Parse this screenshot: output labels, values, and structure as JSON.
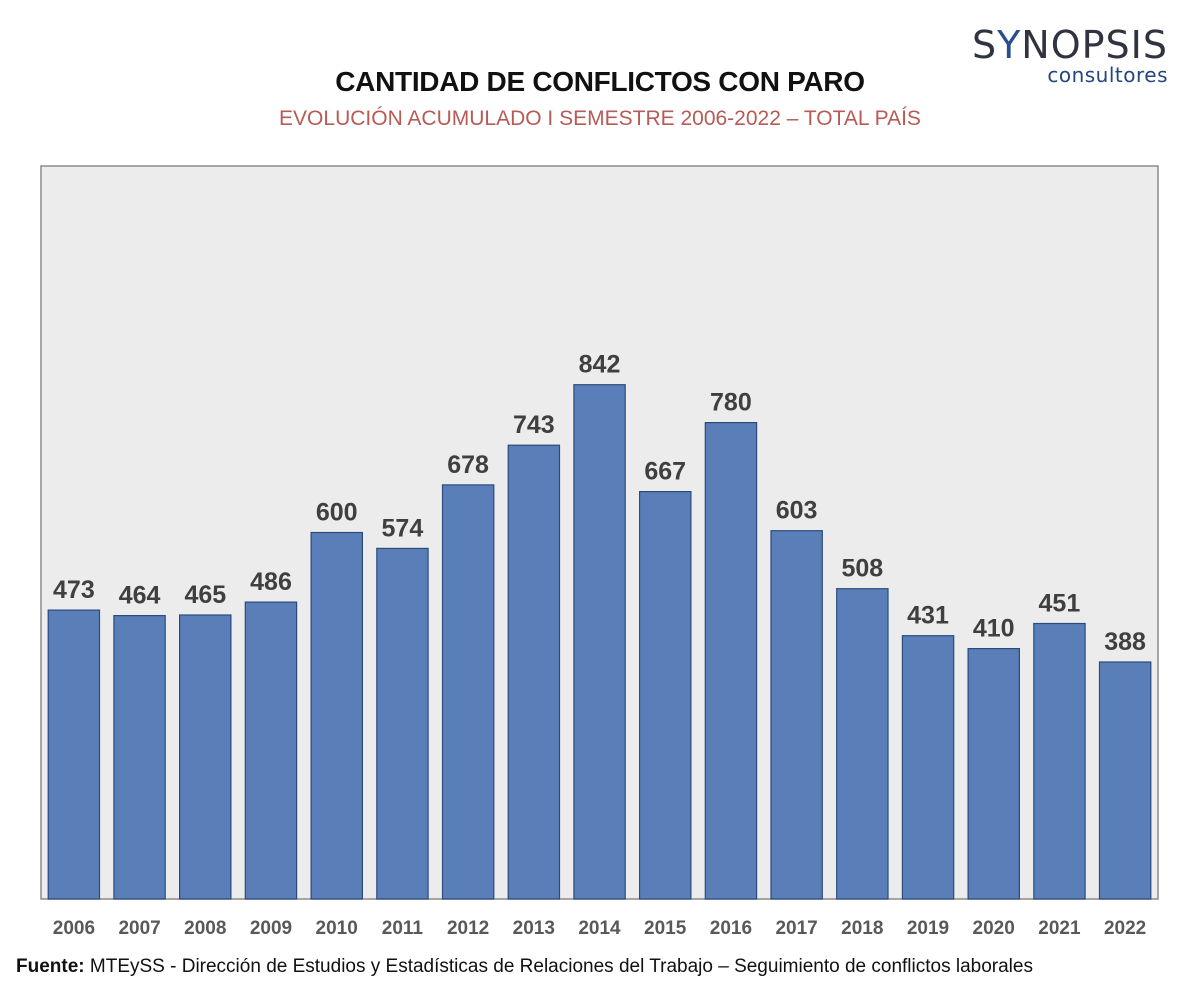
{
  "logo": {
    "brand_pre": "S",
    "brand_accent": "Y",
    "brand_post": "NOPSIS",
    "tagline": "consultores"
  },
  "footer": {
    "label": "Fuente:",
    "text": " MTEySS - Dirección de Estudios y Estadísticas de Relaciones del Trabajo – Seguimiento de conflictos laborales"
  },
  "colors": {
    "bar_fill": "#5a7fb8",
    "bar_stroke": "#2b4a7d",
    "plot_background": "#ececec",
    "plot_border": "#8c8c8c",
    "label_text": "#3f3f3f",
    "subtitle_text": "#b85a55"
  },
  "chart_data": {
    "type": "bar",
    "title": "CANTIDAD DE CONFLICTOS CON PARO",
    "subtitle": "EVOLUCIÓN ACUMULADO I SEMESTRE 2006-2022 – TOTAL PAÍS",
    "categories": [
      "2006",
      "2007",
      "2008",
      "2009",
      "2010",
      "2011",
      "2012",
      "2013",
      "2014",
      "2015",
      "2016",
      "2017",
      "2018",
      "2019",
      "2020",
      "2021",
      "2022"
    ],
    "values": [
      473,
      464,
      465,
      486,
      600,
      574,
      678,
      743,
      842,
      667,
      780,
      603,
      508,
      431,
      410,
      451,
      388
    ],
    "xlabel": "",
    "ylabel": "",
    "ylim": [
      0,
      1200
    ],
    "grid": false,
    "legend": "none",
    "data_labels": true
  }
}
